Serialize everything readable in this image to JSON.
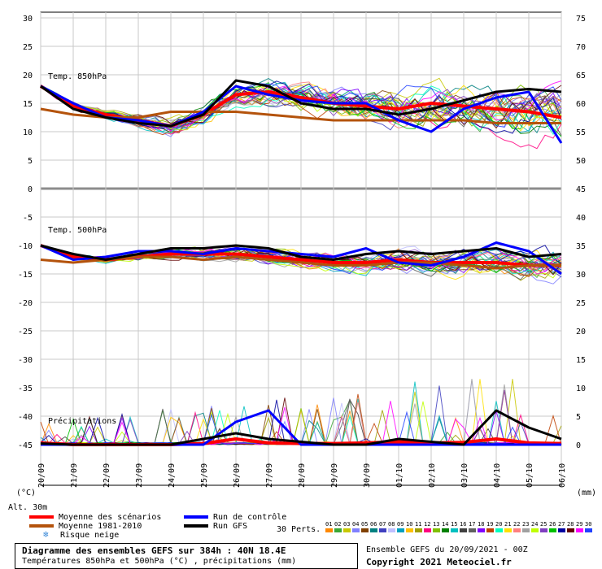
{
  "chart_data": {
    "type": "line",
    "title": "Diagramme des ensembles GEFS sur 384h : 40N 18.4E",
    "subtitle": "Températures 850hPa et 500hPa (°C) , précipitations (mm)",
    "left_axis": {
      "label": "(°C)",
      "ticks": [
        30,
        25,
        20,
        15,
        10,
        5,
        0,
        -5,
        -10,
        -15,
        -20,
        -25,
        -30,
        -35,
        -40,
        -45
      ],
      "range": [
        -45,
        30
      ]
    },
    "right_axis": {
      "label": "(mm)",
      "ticks": [
        75,
        70,
        65,
        60,
        55,
        50,
        45,
        40,
        35,
        30,
        25,
        20,
        15,
        10,
        5,
        0
      ],
      "range": [
        0,
        75
      ]
    },
    "x_dates": [
      "20/09",
      "21/09",
      "22/09",
      "23/09",
      "24/09",
      "25/09",
      "26/09",
      "27/09",
      "28/09",
      "29/09",
      "30/09",
      "01/10",
      "02/10",
      "03/10",
      "04/10",
      "05/10",
      "06/10"
    ],
    "panel_labels": {
      "t850": "Temp. 850hPa",
      "t500": "Temp. 500hPa",
      "precip": "Précipitations"
    },
    "altitude_label": "Alt. 30m",
    "grid": true,
    "series": [
      {
        "name": "Moyenne des scénarios",
        "color": "#ff0000",
        "t850": [
          18,
          14.5,
          13,
          12,
          11,
          13,
          16.5,
          17,
          16,
          15,
          14.5,
          14,
          15,
          14.5,
          14,
          13.5,
          12.5
        ],
        "t500": [
          -10,
          -12,
          -12.5,
          -12,
          -11.5,
          -11.5,
          -11.5,
          -12,
          -12.5,
          -13,
          -13,
          -12.5,
          -13,
          -13,
          -13,
          -13.5,
          -13.5
        ],
        "precip": [
          0.3,
          0,
          0,
          0,
          0,
          0.2,
          1,
          0.3,
          0.2,
          0.2,
          0.3,
          0.5,
          0.3,
          0.4,
          1,
          0.3,
          0.2
        ]
      },
      {
        "name": "Moyenne 1981-2010",
        "color": "#b4530c",
        "t850": [
          14,
          13,
          12.5,
          12.5,
          13.5,
          13.5,
          13.5,
          13,
          12.5,
          12,
          12,
          12,
          12,
          12,
          11.5,
          11.5,
          11.5
        ],
        "t500": [
          -12.5,
          -13,
          -12.5,
          -12,
          -12,
          -12.5,
          -12,
          -12.5,
          -13,
          -13.5,
          -13.5,
          -13,
          -13,
          -13.5,
          -14,
          -13.5,
          -13.5
        ]
      },
      {
        "name": "Run de contrôle",
        "color": "#0000ff",
        "t850": [
          18,
          15,
          12.5,
          12,
          11,
          13.5,
          18,
          16.5,
          15.5,
          15,
          15,
          12,
          10,
          14,
          16,
          17,
          8
        ],
        "t500": [
          -10,
          -12.5,
          -12,
          -11,
          -11,
          -11.5,
          -10.5,
          -11,
          -11.5,
          -12,
          -10.5,
          -13,
          -13.5,
          -12,
          -9.5,
          -11,
          -15
        ],
        "precip": [
          0,
          0,
          0,
          0,
          0,
          0,
          4,
          6,
          0,
          0,
          0,
          0,
          0,
          0,
          0,
          0,
          0
        ]
      },
      {
        "name": "Run GFS",
        "color": "#000000",
        "t850": [
          18,
          14,
          12.5,
          11.5,
          11,
          13,
          19,
          18,
          15,
          14,
          14,
          13,
          14,
          15.5,
          17,
          17.5,
          17
        ],
        "t500": [
          -10,
          -11.5,
          -12.5,
          -11.5,
          -10.5,
          -10.5,
          -10,
          -10.5,
          -12,
          -12.5,
          -11.5,
          -11,
          -11.5,
          -11,
          -10.5,
          -12,
          -11.5
        ],
        "precip": [
          0.2,
          0,
          0,
          0,
          0,
          1,
          2,
          1,
          0.5,
          0,
          0,
          1,
          0.5,
          0,
          6,
          3,
          1
        ]
      }
    ],
    "perturbations": {
      "label": "30 Perts.",
      "numbers": [
        "01",
        "02",
        "03",
        "04",
        "05",
        "06",
        "07",
        "08",
        "09",
        "10",
        "11",
        "12",
        "13",
        "14",
        "15",
        "16",
        "17",
        "18",
        "19",
        "20",
        "21",
        "22",
        "23",
        "24",
        "25",
        "26",
        "27",
        "28",
        "29",
        "30"
      ],
      "colors": [
        "#ff8800",
        "#3aa835",
        "#c8c800",
        "#8080ff",
        "#804000",
        "#008080",
        "#4040c0",
        "#c0c0ff",
        "#00a0c0",
        "#ffc000",
        "#a0a000",
        "#ff0080",
        "#80c000",
        "#008000",
        "#00c0c0",
        "#404040",
        "#606060",
        "#8000ff",
        "#c04000",
        "#00ffc0",
        "#ffe000",
        "#ff8080",
        "#a0a0a0",
        "#c0ff00",
        "#8040c0",
        "#00c000",
        "#0000a0",
        "#600000",
        "#ff00ff",
        "#2040ff"
      ]
    },
    "run_info": "Ensemble GEFS du 20/09/2021 - 00Z"
  },
  "legend": {
    "mean": "Moyenne des scénarios",
    "climo": "Moyenne 1981-2010",
    "snow": "Risque neige",
    "control": "Run de contrôle",
    "gfs": "Run GFS"
  },
  "footer": {
    "title": "Diagramme des ensembles GEFS sur 384h : 40N 18.4E",
    "subtitle": "Températures 850hPa et 500hPa (°C) , précipitations (mm)",
    "run_info": "Ensemble GEFS du 20/09/2021 - 00Z",
    "copyright": "Copyright 2021 Meteociel.fr"
  },
  "colors": {
    "background": "#ffffff",
    "grid": "#c8c8c8",
    "separator": "#8c8c8c"
  }
}
